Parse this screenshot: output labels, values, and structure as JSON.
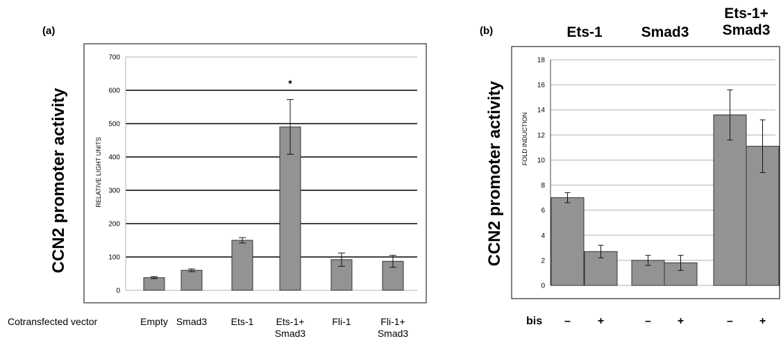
{
  "panels": [
    {
      "tag": "(a)",
      "outer_ylabel": "CCN2 promoter activity"
    },
    {
      "tag": "(b)",
      "outer_ylabel": "CCN2 promoter activity"
    }
  ],
  "chart_data": [
    {
      "type": "bar",
      "ylabel": "RELATIVE LIGHT UNITS",
      "ylim": [
        0,
        700
      ],
      "yticks": [
        0,
        100,
        200,
        300,
        400,
        500,
        600,
        700
      ],
      "grid": true,
      "categories": [
        "Empty",
        "Smad3",
        "Ets-1",
        "Ets-1+\nSmad3",
        "Fli-1",
        "Fli-1+\nSmad3"
      ],
      "values": [
        38,
        60,
        150,
        490,
        92,
        87
      ],
      "errors": [
        3,
        4,
        8,
        82,
        20,
        18
      ],
      "annotation": "*",
      "row_label": "Cotransfected vector"
    },
    {
      "type": "bar",
      "ylabel": "FOLD INDUCTION",
      "ylim": [
        0,
        18
      ],
      "yticks": [
        0,
        2,
        4,
        6,
        8,
        10,
        12,
        14,
        16,
        18
      ],
      "grid": true,
      "groups": [
        "Ets-1",
        "Smad3",
        "Ets-1+\nSmad3"
      ],
      "bis_label": "bis",
      "bis_marks": [
        "–",
        "+"
      ],
      "values": [
        7.0,
        2.7,
        2.0,
        1.8,
        13.6,
        11.1
      ],
      "errors": [
        0.4,
        0.5,
        0.4,
        0.6,
        2.0,
        2.1
      ]
    }
  ],
  "colors": {
    "bar": "#939393",
    "bar_edge": "#333333",
    "grid": "#000000",
    "grid_light": "#b0b0b0"
  }
}
